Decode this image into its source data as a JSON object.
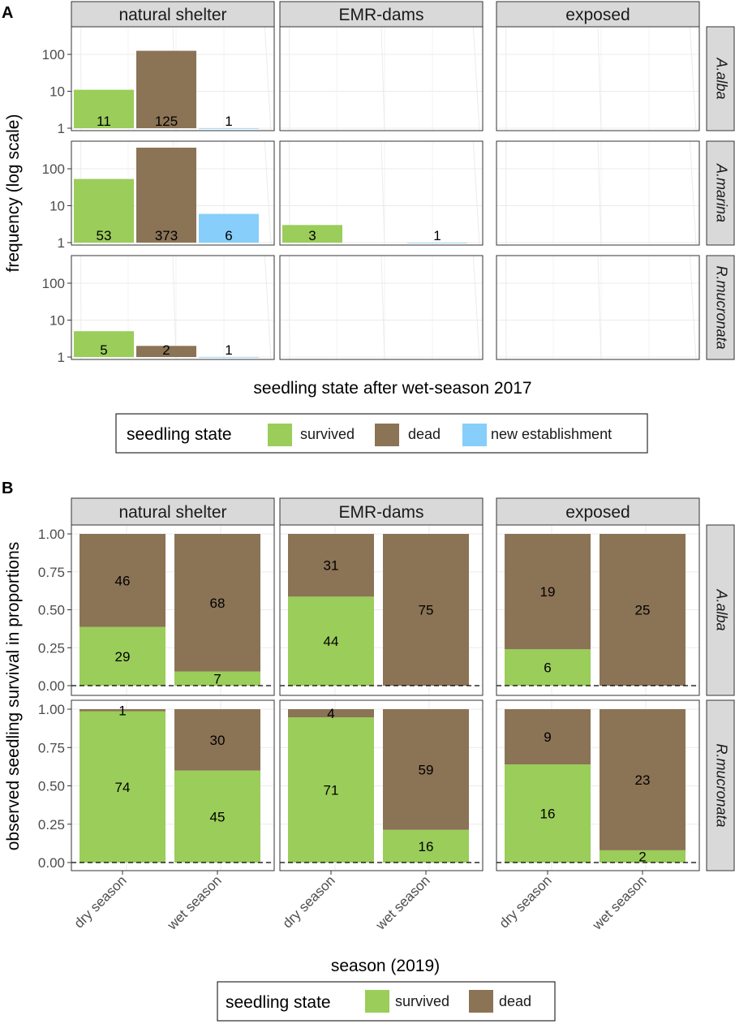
{
  "colors": {
    "survived": "#9ACD5A",
    "dead": "#8B7355",
    "new_establishment": "#87CEFA",
    "strip_fill": "#D9D9D9",
    "grid": "#EBEBEB"
  },
  "chart_data": [
    {
      "panel": "A",
      "type": "bar",
      "scale": "log",
      "facet_columns": [
        "natural shelter",
        "EMR-dams",
        "exposed"
      ],
      "facet_rows": [
        "A.alba",
        "A.marina",
        "R.mucronata"
      ],
      "categories": [
        "survived",
        "dead",
        "new establishment"
      ],
      "yticks": [
        1,
        10,
        100
      ],
      "yticklabels": [
        "1",
        "10",
        "100"
      ],
      "ylabel": "frequency (log scale)",
      "xlabel": "seedling state after wet-season 2017",
      "ylim": [
        0.8,
        500
      ],
      "legend": {
        "title": "seedling state",
        "entries": [
          "survived",
          "dead",
          "new establishment"
        ],
        "keys": [
          "survived",
          "dead",
          "new_establishment"
        ],
        "placement": "bottom"
      },
      "bars": [
        {
          "row": 0,
          "col": 0,
          "cat": 0,
          "value": 11,
          "label": "11"
        },
        {
          "row": 0,
          "col": 0,
          "cat": 1,
          "value": 125,
          "label": "125"
        },
        {
          "row": 0,
          "col": 0,
          "cat": 2,
          "value": 1,
          "label": "1"
        },
        {
          "row": 1,
          "col": 0,
          "cat": 0,
          "value": 53,
          "label": "53"
        },
        {
          "row": 1,
          "col": 0,
          "cat": 1,
          "value": 373,
          "label": "373"
        },
        {
          "row": 1,
          "col": 0,
          "cat": 2,
          "value": 6,
          "label": "6"
        },
        {
          "row": 1,
          "col": 1,
          "cat": 0,
          "value": 3,
          "label": "3"
        },
        {
          "row": 1,
          "col": 1,
          "cat": 2,
          "value": 1,
          "label": "1"
        },
        {
          "row": 2,
          "col": 0,
          "cat": 0,
          "value": 5,
          "label": "5"
        },
        {
          "row": 2,
          "col": 0,
          "cat": 1,
          "value": 2,
          "label": "2"
        },
        {
          "row": 2,
          "col": 0,
          "cat": 2,
          "value": 1,
          "label": "1"
        }
      ]
    },
    {
      "panel": "B",
      "type": "bar",
      "stacked": true,
      "facet_columns": [
        "natural shelter",
        "EMR-dams",
        "exposed"
      ],
      "facet_rows": [
        "A.alba",
        "R.mucronata"
      ],
      "categories": [
        "dry season",
        "wet season"
      ],
      "yticks": [
        0,
        0.25,
        0.5,
        0.75,
        1
      ],
      "yticklabels": [
        "0.00",
        "0.25",
        "0.50",
        "0.75",
        "1.00"
      ],
      "ylabel": "observed seedling survival in proportions",
      "xlabel": "season (2019)",
      "ylim": [
        -0.05,
        1.05
      ],
      "reference_line": 0,
      "legend": {
        "title": "seedling state",
        "entries": [
          "survived",
          "dead"
        ],
        "keys": [
          "survived",
          "dead"
        ],
        "placement": "bottom"
      },
      "bars": [
        {
          "row": 0,
          "col": 0,
          "cat": 0,
          "survived": 29,
          "dead": 46
        },
        {
          "row": 0,
          "col": 0,
          "cat": 1,
          "survived": 7,
          "dead": 68
        },
        {
          "row": 0,
          "col": 1,
          "cat": 0,
          "survived": 44,
          "dead": 31
        },
        {
          "row": 0,
          "col": 1,
          "cat": 1,
          "survived": 0,
          "dead": 75
        },
        {
          "row": 0,
          "col": 2,
          "cat": 0,
          "survived": 6,
          "dead": 19
        },
        {
          "row": 0,
          "col": 2,
          "cat": 1,
          "survived": 0,
          "dead": 25
        },
        {
          "row": 1,
          "col": 0,
          "cat": 0,
          "survived": 74,
          "dead": 1
        },
        {
          "row": 1,
          "col": 0,
          "cat": 1,
          "survived": 45,
          "dead": 30
        },
        {
          "row": 1,
          "col": 1,
          "cat": 0,
          "survived": 71,
          "dead": 4
        },
        {
          "row": 1,
          "col": 1,
          "cat": 1,
          "survived": 16,
          "dead": 59
        },
        {
          "row": 1,
          "col": 2,
          "cat": 0,
          "survived": 16,
          "dead": 9
        },
        {
          "row": 1,
          "col": 2,
          "cat": 1,
          "survived": 2,
          "dead": 23
        }
      ]
    }
  ]
}
